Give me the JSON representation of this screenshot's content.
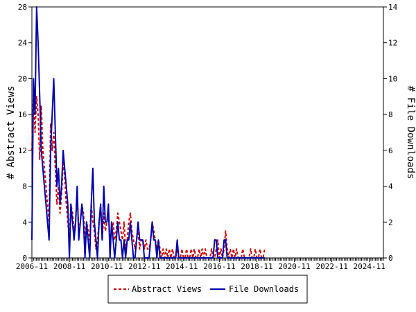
{
  "chart_data": {
    "type": "line",
    "ylabel_left": "# Abstract Views",
    "ylabel_right": "# File Downloads",
    "x_tick_labels": [
      "2006-11",
      "2008-11",
      "2010-11",
      "2012-11",
      "2014-11",
      "2016-11",
      "2018-11",
      "2020-11",
      "2022-11",
      "2024-11"
    ],
    "y_left_ticks": [
      0,
      4,
      8,
      12,
      16,
      20,
      24,
      28
    ],
    "y_right_ticks": [
      0,
      2,
      4,
      6,
      8,
      10,
      12,
      14
    ],
    "ylim_left": [
      0,
      28
    ],
    "ylim_right": [
      0,
      14
    ],
    "x_range": [
      "2006-11",
      "2025-08"
    ],
    "grid": false,
    "legend_position": "bottom-center",
    "series": [
      {
        "name": "Abstract Views",
        "axis": "left",
        "color": "#cc0000",
        "dash": true,
        "values": [
          12,
          19,
          14,
          18,
          16,
          11,
          17,
          12,
          10,
          8,
          6,
          4,
          15,
          12,
          14,
          10,
          6,
          8,
          5,
          7,
          11,
          9,
          6,
          4,
          2,
          6,
          5,
          3,
          4,
          7,
          3,
          4,
          6,
          5,
          2,
          4,
          3,
          2,
          6,
          4,
          3,
          1,
          2,
          4,
          6,
          2,
          5,
          3,
          4,
          5,
          2,
          3,
          4,
          2,
          3,
          5,
          4,
          3,
          2,
          4,
          1,
          2,
          4,
          5,
          3,
          2,
          1,
          2,
          3,
          1,
          2,
          2,
          1,
          2,
          1,
          1,
          2,
          4,
          3,
          2,
          1,
          2,
          1,
          0,
          1,
          0,
          1,
          0,
          1,
          0,
          1,
          0,
          0,
          1,
          0,
          0,
          1,
          0,
          0,
          1,
          0,
          0,
          1,
          0,
          1,
          0,
          0,
          1,
          0,
          1,
          0,
          1,
          0,
          0,
          0,
          1,
          0,
          0,
          1,
          2,
          0,
          1,
          0,
          1,
          3,
          1,
          0,
          1,
          0,
          1,
          0,
          1,
          0,
          0,
          0,
          1,
          0,
          0,
          0,
          0,
          1,
          0,
          0,
          1,
          0,
          0,
          1,
          0,
          0,
          1
        ]
      },
      {
        "name": "File Downloads",
        "axis": "right",
        "color": "#0000aa",
        "dash": false,
        "values": [
          1,
          10,
          8,
          14,
          12,
          9,
          6,
          5,
          4,
          3,
          2,
          1,
          6,
          8,
          10,
          7,
          4,
          5,
          3,
          4,
          6,
          5,
          4,
          3,
          0,
          3,
          2,
          1,
          2,
          4,
          1,
          2,
          3,
          2,
          0,
          2,
          1,
          0,
          3,
          5,
          2,
          1,
          0,
          2,
          3,
          1,
          4,
          2,
          2,
          3,
          0,
          2,
          1,
          0,
          1,
          2,
          1,
          1,
          0,
          1,
          0,
          1,
          1,
          2,
          1,
          0,
          0,
          1,
          2,
          1,
          1,
          1,
          0,
          0,
          0,
          0,
          1,
          2,
          1,
          1,
          0,
          1,
          0,
          0,
          0,
          0,
          0,
          0,
          0,
          0,
          0,
          0,
          0,
          1,
          0,
          0,
          0,
          0,
          0,
          0,
          0,
          0,
          0,
          0,
          0,
          0,
          0,
          0,
          0,
          0,
          0,
          0,
          0,
          0,
          0,
          0,
          0,
          1,
          1,
          0,
          0,
          0,
          0,
          1,
          1,
          0,
          0,
          0,
          0,
          0,
          0,
          0,
          0,
          0,
          0,
          0,
          0,
          0,
          0,
          0,
          0,
          0,
          0,
          0,
          0,
          0,
          0,
          0,
          0,
          0
        ]
      }
    ]
  }
}
